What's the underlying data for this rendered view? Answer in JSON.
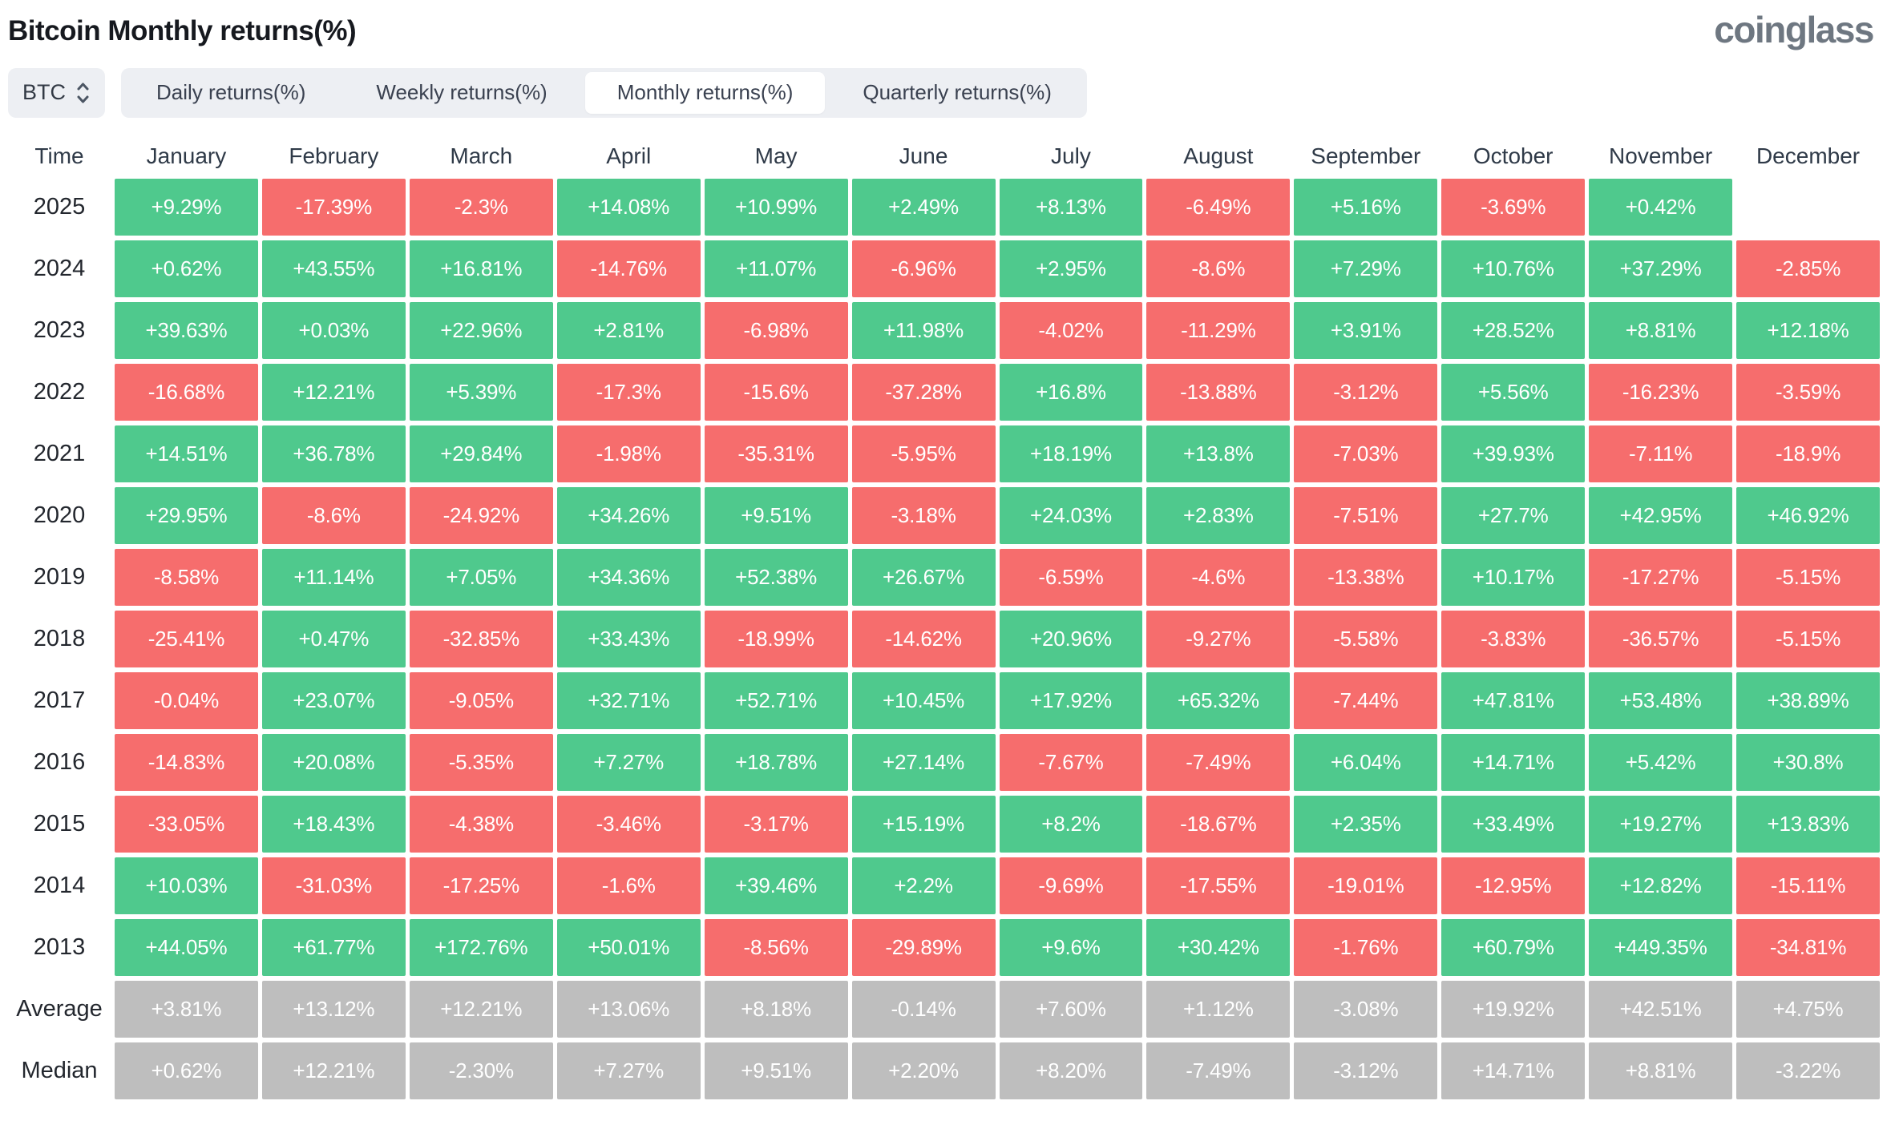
{
  "header": {
    "title": "Bitcoin Monthly returns(%)",
    "logo": "coinglass"
  },
  "controls": {
    "symbol": "BTC",
    "tabs": [
      {
        "id": "daily",
        "label": "Daily returns(%)",
        "active": false
      },
      {
        "id": "weekly",
        "label": "Weekly returns(%)",
        "active": false
      },
      {
        "id": "monthly",
        "label": "Monthly returns(%)",
        "active": true
      },
      {
        "id": "quarterly",
        "label": "Quarterly returns(%)",
        "active": false
      }
    ]
  },
  "colors": {
    "positive": "#4FC98D",
    "negative": "#F66D6D",
    "neutral": "#BEBEBE"
  },
  "chart_data": {
    "type": "heatmap",
    "title": "Bitcoin Monthly returns(%)",
    "unit": "%",
    "color_coding": {
      "positive": "green",
      "negative": "red",
      "summary_rows": "gray",
      "missing": "blank"
    },
    "columns": [
      "Time",
      "January",
      "February",
      "March",
      "April",
      "May",
      "June",
      "July",
      "August",
      "September",
      "October",
      "November",
      "December"
    ],
    "rows": [
      {
        "label": "2025",
        "summary": false,
        "values": [
          "+9.29%",
          "-17.39%",
          "-2.3%",
          "+14.08%",
          "+10.99%",
          "+2.49%",
          "+8.13%",
          "-6.49%",
          "+5.16%",
          "-3.69%",
          "+0.42%",
          ""
        ]
      },
      {
        "label": "2024",
        "summary": false,
        "values": [
          "+0.62%",
          "+43.55%",
          "+16.81%",
          "-14.76%",
          "+11.07%",
          "-6.96%",
          "+2.95%",
          "-8.6%",
          "+7.29%",
          "+10.76%",
          "+37.29%",
          "-2.85%"
        ]
      },
      {
        "label": "2023",
        "summary": false,
        "values": [
          "+39.63%",
          "+0.03%",
          "+22.96%",
          "+2.81%",
          "-6.98%",
          "+11.98%",
          "-4.02%",
          "-11.29%",
          "+3.91%",
          "+28.52%",
          "+8.81%",
          "+12.18%"
        ]
      },
      {
        "label": "2022",
        "summary": false,
        "values": [
          "-16.68%",
          "+12.21%",
          "+5.39%",
          "-17.3%",
          "-15.6%",
          "-37.28%",
          "+16.8%",
          "-13.88%",
          "-3.12%",
          "+5.56%",
          "-16.23%",
          "-3.59%"
        ]
      },
      {
        "label": "2021",
        "summary": false,
        "values": [
          "+14.51%",
          "+36.78%",
          "+29.84%",
          "-1.98%",
          "-35.31%",
          "-5.95%",
          "+18.19%",
          "+13.8%",
          "-7.03%",
          "+39.93%",
          "-7.11%",
          "-18.9%"
        ]
      },
      {
        "label": "2020",
        "summary": false,
        "values": [
          "+29.95%",
          "-8.6%",
          "-24.92%",
          "+34.26%",
          "+9.51%",
          "-3.18%",
          "+24.03%",
          "+2.83%",
          "-7.51%",
          "+27.7%",
          "+42.95%",
          "+46.92%"
        ]
      },
      {
        "label": "2019",
        "summary": false,
        "values": [
          "-8.58%",
          "+11.14%",
          "+7.05%",
          "+34.36%",
          "+52.38%",
          "+26.67%",
          "-6.59%",
          "-4.6%",
          "-13.38%",
          "+10.17%",
          "-17.27%",
          "-5.15%"
        ]
      },
      {
        "label": "2018",
        "summary": false,
        "values": [
          "-25.41%",
          "+0.47%",
          "-32.85%",
          "+33.43%",
          "-18.99%",
          "-14.62%",
          "+20.96%",
          "-9.27%",
          "-5.58%",
          "-3.83%",
          "-36.57%",
          "-5.15%"
        ]
      },
      {
        "label": "2017",
        "summary": false,
        "values": [
          "-0.04%",
          "+23.07%",
          "-9.05%",
          "+32.71%",
          "+52.71%",
          "+10.45%",
          "+17.92%",
          "+65.32%",
          "-7.44%",
          "+47.81%",
          "+53.48%",
          "+38.89%"
        ]
      },
      {
        "label": "2016",
        "summary": false,
        "values": [
          "-14.83%",
          "+20.08%",
          "-5.35%",
          "+7.27%",
          "+18.78%",
          "+27.14%",
          "-7.67%",
          "-7.49%",
          "+6.04%",
          "+14.71%",
          "+5.42%",
          "+30.8%"
        ]
      },
      {
        "label": "2015",
        "summary": false,
        "values": [
          "-33.05%",
          "+18.43%",
          "-4.38%",
          "-3.46%",
          "-3.17%",
          "+15.19%",
          "+8.2%",
          "-18.67%",
          "+2.35%",
          "+33.49%",
          "+19.27%",
          "+13.83%"
        ]
      },
      {
        "label": "2014",
        "summary": false,
        "values": [
          "+10.03%",
          "-31.03%",
          "-17.25%",
          "-1.6%",
          "+39.46%",
          "+2.2%",
          "-9.69%",
          "-17.55%",
          "-19.01%",
          "-12.95%",
          "+12.82%",
          "-15.11%"
        ]
      },
      {
        "label": "2013",
        "summary": false,
        "values": [
          "+44.05%",
          "+61.77%",
          "+172.76%",
          "+50.01%",
          "-8.56%",
          "-29.89%",
          "+9.6%",
          "+30.42%",
          "-1.76%",
          "+60.79%",
          "+449.35%",
          "-34.81%"
        ]
      },
      {
        "label": "Average",
        "summary": true,
        "values": [
          "+3.81%",
          "+13.12%",
          "+12.21%",
          "+13.06%",
          "+8.18%",
          "-0.14%",
          "+7.60%",
          "+1.12%",
          "-3.08%",
          "+19.92%",
          "+42.51%",
          "+4.75%"
        ]
      },
      {
        "label": "Median",
        "summary": true,
        "values": [
          "+0.62%",
          "+12.21%",
          "-2.30%",
          "+7.27%",
          "+9.51%",
          "+2.20%",
          "+8.20%",
          "-7.49%",
          "-3.12%",
          "+14.71%",
          "+8.81%",
          "-3.22%"
        ]
      }
    ]
  }
}
